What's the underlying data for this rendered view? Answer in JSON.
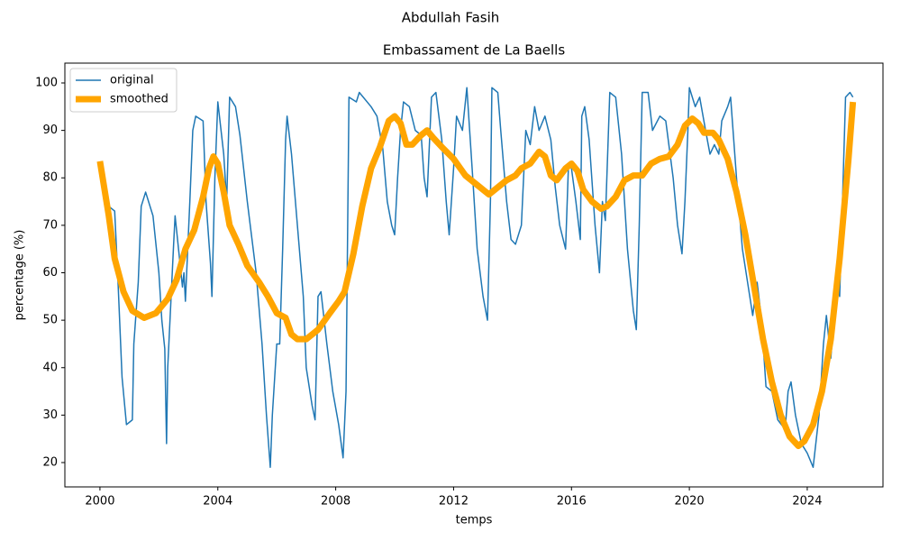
{
  "chart_data": {
    "type": "line",
    "suptitle": "Abdullah Fasih",
    "title": "Embassament de La Baells",
    "xlabel": "temps",
    "ylabel": "percentage (%)",
    "xlim": [
      1998.81,
      2026.57
    ],
    "ylim": [
      14.87,
      104.18
    ],
    "xticks": [
      2000,
      2004,
      2008,
      2012,
      2016,
      2020,
      2024
    ],
    "yticks": [
      20,
      30,
      40,
      50,
      60,
      70,
      80,
      90,
      100
    ],
    "legend": "upper left",
    "series": [
      {
        "name": "original",
        "color": "#1f77b4",
        "width": 1.5,
        "x": [
          2000.3,
          2000.5,
          2000.6,
          2000.75,
          2000.9,
          2001.1,
          2001.15,
          2001.3,
          2001.4,
          2001.55,
          2001.8,
          2002.0,
          2002.1,
          2002.2,
          2002.26,
          2002.3,
          2002.5,
          2002.55,
          2002.8,
          2002.85,
          2002.9,
          2003.05,
          2003.15,
          2003.25,
          2003.5,
          2003.6,
          2003.75,
          2003.8,
          2003.9,
          2004.0,
          2004.2,
          2004.3,
          2004.4,
          2004.6,
          2004.75,
          2005.0,
          2005.3,
          2005.5,
          2005.65,
          2005.78,
          2005.85,
          2006.0,
          2006.1,
          2006.2,
          2006.3,
          2006.35,
          2006.5,
          2006.7,
          2006.9,
          2007.0,
          2007.2,
          2007.3,
          2007.4,
          2007.5,
          2007.7,
          2007.9,
          2008.1,
          2008.25,
          2008.35,
          2008.45,
          2008.7,
          2008.8,
          2009.2,
          2009.4,
          2009.6,
          2009.75,
          2009.9,
          2010.0,
          2010.1,
          2010.2,
          2010.3,
          2010.5,
          2010.7,
          2010.9,
          2011.0,
          2011.1,
          2011.25,
          2011.4,
          2011.6,
          2011.75,
          2011.85,
          2012.0,
          2012.1,
          2012.3,
          2012.45,
          2012.65,
          2012.8,
          2012.9,
          2013.0,
          2013.15,
          2013.25,
          2013.3,
          2013.5,
          2013.6,
          2013.8,
          2013.95,
          2014.1,
          2014.3,
          2014.45,
          2014.6,
          2014.75,
          2014.9,
          2015.1,
          2015.3,
          2015.45,
          2015.6,
          2015.8,
          2015.9,
          2016.0,
          2016.15,
          2016.3,
          2016.35,
          2016.45,
          2016.6,
          2016.8,
          2016.95,
          2017.05,
          2017.15,
          2017.3,
          2017.5,
          2017.7,
          2017.9,
          2018.1,
          2018.2,
          2018.3,
          2018.4,
          2018.6,
          2018.75,
          2019.0,
          2019.2,
          2019.45,
          2019.6,
          2019.75,
          2019.85,
          2019.95,
          2020.0,
          2020.2,
          2020.35,
          2020.55,
          2020.7,
          2020.85,
          2021.0,
          2021.1,
          2021.3,
          2021.4,
          2021.6,
          2021.8,
          2022.05,
          2022.15,
          2022.3,
          2022.45,
          2022.6,
          2022.8,
          2023.0,
          2023.25,
          2023.35,
          2023.45,
          2023.6,
          2023.8,
          2024.0,
          2024.2,
          2024.4,
          2024.55,
          2024.65,
          2024.8,
          2024.9,
          2025.0,
          2025.1,
          2025.3,
          2025.45,
          2025.55
        ],
        "values": [
          74,
          73,
          60,
          38,
          28,
          29,
          45,
          58,
          74,
          77,
          72,
          60,
          50,
          44,
          24,
          40,
          66,
          72,
          57,
          60,
          54,
          75,
          90,
          93,
          92,
          75,
          62,
          55,
          80,
          96,
          85,
          75,
          97,
          95,
          89,
          75,
          60,
          45,
          30,
          19,
          30,
          45,
          45,
          65,
          88,
          93,
          85,
          70,
          55,
          40,
          32,
          29,
          55,
          56,
          45,
          35,
          28,
          21,
          35,
          97,
          96,
          98,
          95,
          93,
          86,
          75,
          70,
          68,
          80,
          90,
          96,
          95,
          90,
          89,
          80,
          76,
          97,
          98,
          88,
          75,
          68,
          82,
          93,
          90,
          99,
          80,
          65,
          60,
          55,
          50,
          75,
          99,
          98,
          90,
          75,
          67,
          66,
          70,
          90,
          87,
          95,
          90,
          93,
          88,
          78,
          70,
          65,
          83,
          82,
          75,
          67,
          93,
          95,
          88,
          70,
          60,
          75,
          71,
          98,
          97,
          85,
          65,
          52,
          48,
          70,
          98,
          98,
          90,
          93,
          92,
          80,
          70,
          64,
          75,
          90,
          99,
          95,
          97,
          90,
          85,
          87,
          85,
          92,
          95,
          97,
          80,
          65,
          55,
          51,
          58,
          50,
          36,
          35,
          29,
          27,
          35,
          37,
          30,
          24,
          22,
          19,
          30,
          45,
          51,
          42,
          50,
          60,
          55,
          97,
          98,
          97
        ]
      },
      {
        "name": "smoothed",
        "color": "#ffa500",
        "width": 7,
        "x": [
          2000.0,
          2000.3,
          2000.5,
          2000.8,
          2001.1,
          2001.5,
          2001.9,
          2002.3,
          2002.6,
          2002.9,
          2003.2,
          2003.5,
          2003.7,
          2003.85,
          2004.0,
          2004.2,
          2004.4,
          2004.7,
          2005.0,
          2005.4,
          2005.7,
          2006.0,
          2006.3,
          2006.5,
          2006.7,
          2007.0,
          2007.4,
          2007.8,
          2008.1,
          2008.3,
          2008.6,
          2008.9,
          2009.2,
          2009.5,
          2009.8,
          2010.0,
          2010.2,
          2010.4,
          2010.6,
          2010.9,
          2011.1,
          2011.3,
          2011.6,
          2012.0,
          2012.4,
          2012.8,
          2013.2,
          2013.5,
          2013.8,
          2014.1,
          2014.3,
          2014.6,
          2014.9,
          2015.1,
          2015.3,
          2015.5,
          2015.8,
          2016.0,
          2016.2,
          2016.4,
          2016.7,
          2017.0,
          2017.2,
          2017.5,
          2017.8,
          2018.1,
          2018.4,
          2018.7,
          2019.0,
          2019.3,
          2019.6,
          2019.85,
          2020.1,
          2020.3,
          2020.5,
          2020.8,
          2021.0,
          2021.3,
          2021.6,
          2021.9,
          2022.2,
          2022.5,
          2022.8,
          2023.1,
          2023.4,
          2023.7,
          2023.9,
          2024.2,
          2024.5,
          2024.8,
          2025.1,
          2025.4,
          2025.55
        ],
        "values": [
          83.5,
          72,
          63,
          56,
          52,
          50.5,
          51.5,
          54.5,
          58.5,
          65,
          69,
          76,
          82,
          84.5,
          83,
          77,
          70,
          66,
          61.5,
          58,
          55,
          51.5,
          50.5,
          47,
          46,
          46,
          48,
          51.5,
          54,
          56,
          64,
          74,
          82,
          86.5,
          92,
          93,
          91.5,
          87,
          87,
          89,
          90,
          88.5,
          86.5,
          84,
          80.5,
          78.5,
          76.5,
          78,
          79.5,
          80.5,
          82,
          83,
          85.5,
          84.5,
          80.5,
          79.5,
          82,
          83,
          81.5,
          77.5,
          75,
          73.5,
          74,
          76,
          79.5,
          80.5,
          80.5,
          83,
          84,
          84.5,
          87,
          91,
          92.5,
          91.5,
          89.5,
          89.5,
          88,
          84,
          77,
          68,
          57,
          46,
          37,
          30,
          25.5,
          23.5,
          24.5,
          28,
          35,
          46,
          63,
          84,
          96
        ]
      }
    ]
  }
}
